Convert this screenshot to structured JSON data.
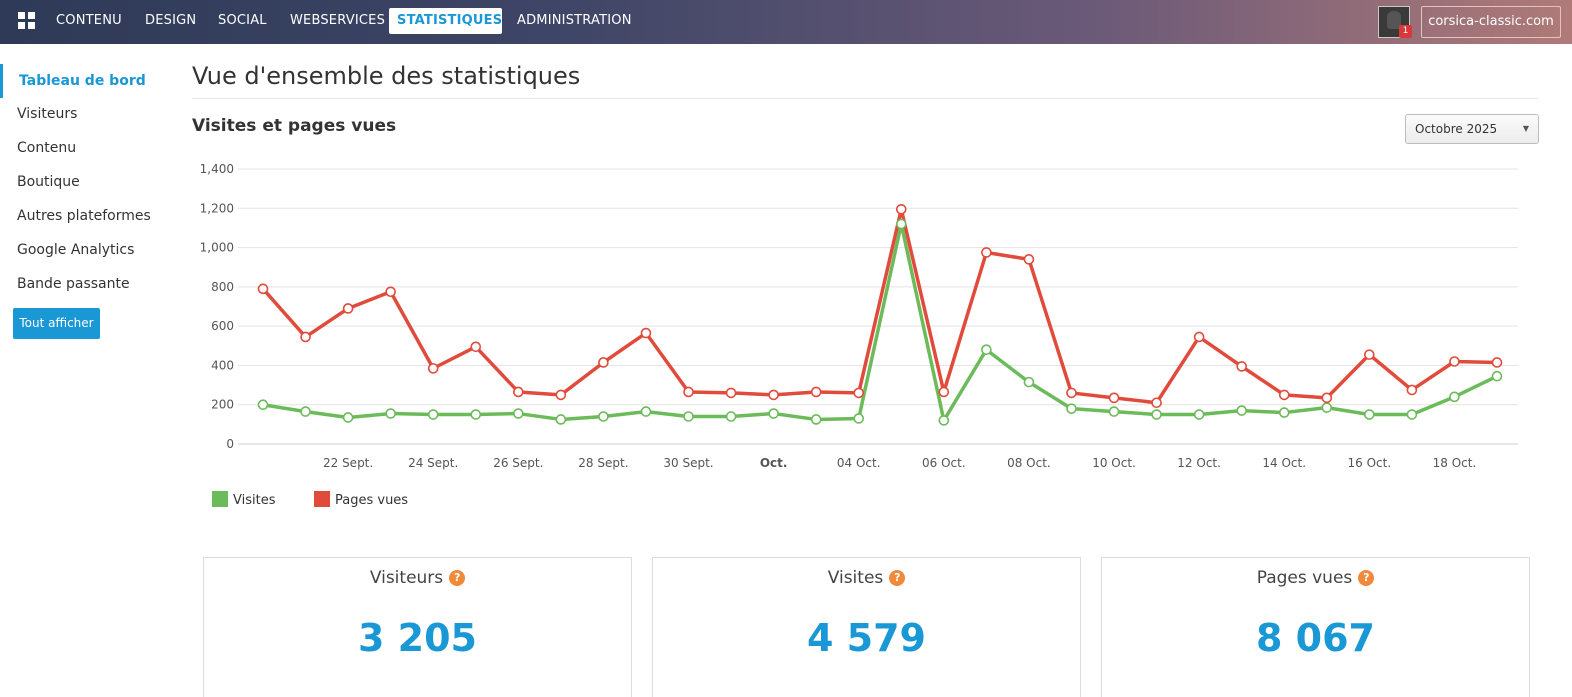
{
  "topnav": {
    "items": [
      "CONTENU",
      "DESIGN",
      "SOCIAL",
      "WEBSERVICES",
      "STATISTIQUES",
      "ADMINISTRATION"
    ],
    "active": "STATISTIQUES",
    "notification_count": "1",
    "site_button": "corsica-classic.com"
  },
  "sidebar": {
    "items": [
      "Tableau de bord",
      "Visiteurs",
      "Contenu",
      "Boutique",
      "Autres plateformes",
      "Google Analytics",
      "Bande passante"
    ],
    "show_all": "Tout afficher"
  },
  "main": {
    "title": "Vue d'ensemble des statistiques",
    "section_title": "Visites et pages vues",
    "month_select": "Octobre 2025"
  },
  "chart_data": {
    "type": "line",
    "x": [
      "20 Sept.",
      "21 Sept.",
      "22 Sept.",
      "23 Sept.",
      "24 Sept.",
      "25 Sept.",
      "26 Sept.",
      "27 Sept.",
      "28 Sept.",
      "29 Sept.",
      "30 Sept.",
      "1 Oct.",
      "2 Oct.",
      "3 Oct.",
      "04 Oct.",
      "05 Oct.",
      "06 Oct.",
      "07 Oct.",
      "08 Oct.",
      "09 Oct.",
      "10 Oct.",
      "11 Oct.",
      "12 Oct.",
      "13 Oct.",
      "14 Oct.",
      "15 Oct.",
      "16 Oct.",
      "17 Oct.",
      "18 Oct.",
      "19 Oct."
    ],
    "xticks": [
      {
        "i": 2,
        "label": "22 Sept."
      },
      {
        "i": 4,
        "label": "24 Sept."
      },
      {
        "i": 6,
        "label": "26 Sept."
      },
      {
        "i": 8,
        "label": "28 Sept."
      },
      {
        "i": 10,
        "label": "30 Sept."
      },
      {
        "i": 12,
        "label": "Oct.",
        "bold": true
      },
      {
        "i": 14,
        "label": "04 Oct."
      },
      {
        "i": 16,
        "label": "06 Oct."
      },
      {
        "i": 18,
        "label": "08 Oct."
      },
      {
        "i": 20,
        "label": "10 Oct."
      },
      {
        "i": 22,
        "label": "12 Oct."
      },
      {
        "i": 24,
        "label": "14 Oct."
      },
      {
        "i": 26,
        "label": "16 Oct."
      },
      {
        "i": 28,
        "label": "18 Oct."
      }
    ],
    "series": [
      {
        "name": "Visites",
        "color": "#6cbb5a",
        "values": [
          200,
          165,
          135,
          155,
          150,
          150,
          155,
          125,
          140,
          165,
          140,
          140,
          155,
          125,
          130,
          1120,
          120,
          480,
          315,
          180,
          165,
          150,
          150,
          170,
          160,
          185,
          150,
          150,
          240,
          345
        ]
      },
      {
        "name": "Pages vues",
        "color": "#e04b3c",
        "values": [
          790,
          545,
          690,
          775,
          385,
          495,
          265,
          250,
          415,
          565,
          265,
          260,
          250,
          265,
          260,
          1195,
          265,
          975,
          940,
          260,
          235,
          210,
          545,
          395,
          250,
          235,
          455,
          275,
          420,
          415
        ]
      }
    ],
    "ylim": [
      0,
      1400
    ],
    "yticks": [
      "0",
      "200",
      "400",
      "600",
      "800",
      "1,000",
      "1,200",
      "1,400"
    ],
    "grid": true,
    "legend": "bottom-left"
  },
  "stats": [
    {
      "title": "Visiteurs",
      "value": "3 205"
    },
    {
      "title": "Visites",
      "value": "4 579"
    },
    {
      "title": "Pages vues",
      "value": "8 067"
    }
  ],
  "help_glyph": "?"
}
